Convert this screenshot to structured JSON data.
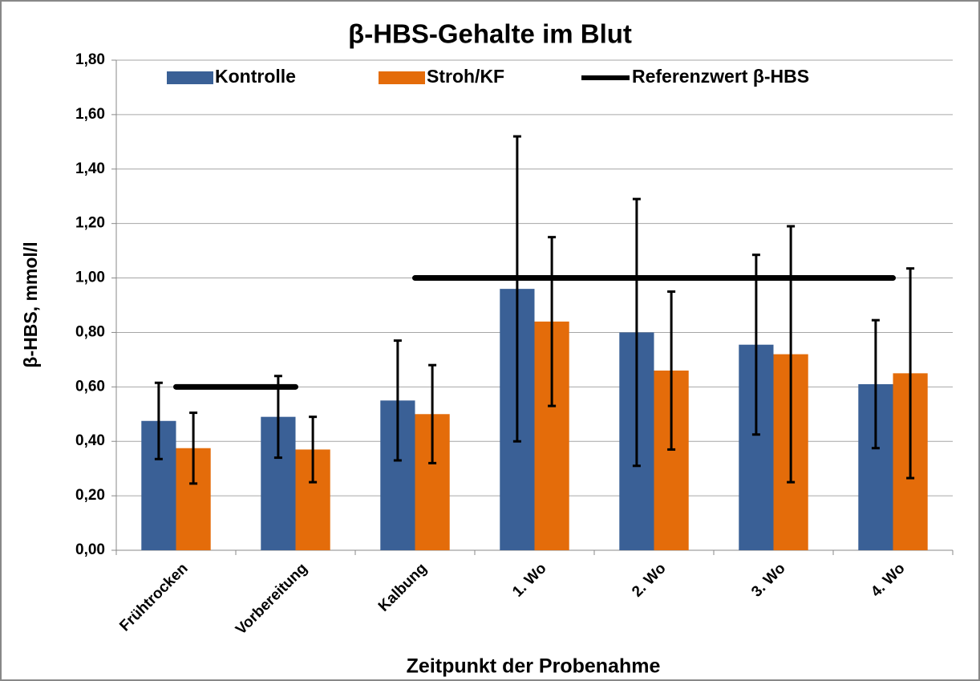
{
  "chart_data": {
    "type": "bar",
    "title": "β-HBS-Gehalte im Blut",
    "x_label": "Zeitpunkt der Probenahme",
    "y_label": "β-HBS, mmol/l",
    "categories": [
      "Frühtrocken",
      "Vorbereitung",
      "Kalbung",
      "1. Wo",
      "2. Wo",
      "3. Wo",
      "4. Wo"
    ],
    "series": [
      {
        "name": "Kontrolle",
        "color": "#3a6096",
        "values": [
          0.475,
          0.49,
          0.55,
          0.96,
          0.8,
          0.755,
          0.61
        ],
        "errors": [
          0.14,
          0.15,
          0.22,
          0.56,
          0.49,
          0.33,
          0.235
        ]
      },
      {
        "name": "Stroh/KF",
        "color": "#e46c0a",
        "values": [
          0.375,
          0.37,
          0.5,
          0.84,
          0.66,
          0.72,
          0.65
        ],
        "errors": [
          0.13,
          0.12,
          0.18,
          0.31,
          0.29,
          0.47,
          0.385
        ]
      },
      {
        "name": "Referenzwert β-HBS",
        "type": "line",
        "color": "#000000",
        "values": [
          0.6,
          0.6,
          1.0,
          1.0,
          1.0,
          1.0,
          1.0
        ]
      }
    ],
    "ylim": [
      0,
      1.8
    ],
    "yticks": [
      {
        "value": 0,
        "label": "0,00"
      },
      {
        "value": 0.2,
        "label": "0,20"
      },
      {
        "value": 0.4,
        "label": "0,40"
      },
      {
        "value": 0.6,
        "label": "0,60"
      },
      {
        "value": 0.8,
        "label": "0,80"
      },
      {
        "value": 1.0,
        "label": "1,00"
      },
      {
        "value": 1.2,
        "label": "1,20"
      },
      {
        "value": 1.4,
        "label": "1,40"
      },
      {
        "value": 1.6,
        "label": "1,60"
      },
      {
        "value": 1.8,
        "label": "1,80"
      }
    ],
    "grid": true,
    "legend": "top"
  }
}
